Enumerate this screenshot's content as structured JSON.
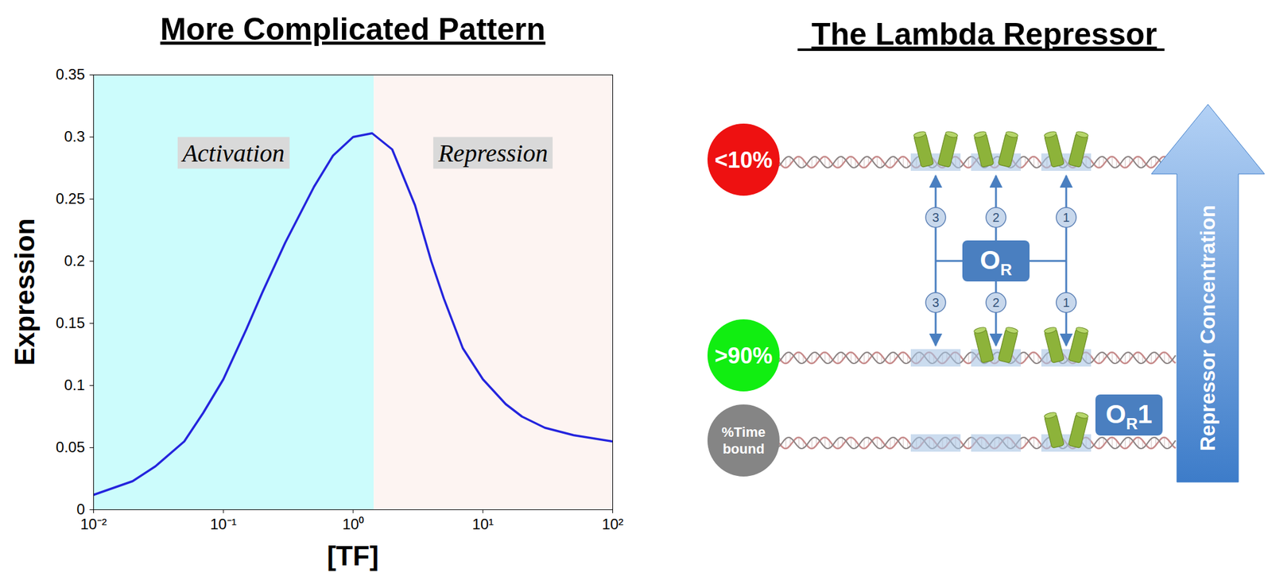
{
  "chart_data": {
    "type": "line",
    "title": "More Complicated Pattern",
    "x_label": "[TF]",
    "y_label": "Expression",
    "log": "x",
    "grid": false,
    "xlim": [
      0.01,
      100
    ],
    "xticks": [
      {
        "value": 0.01,
        "label": "10⁻²"
      },
      {
        "value": 0.1,
        "label": "10⁻¹"
      },
      {
        "value": 1,
        "label": "10⁰"
      },
      {
        "value": 10,
        "label": "10¹"
      },
      {
        "value": 100,
        "label": "10²"
      }
    ],
    "ylim": [
      0,
      0.35
    ],
    "yticks": [
      0,
      0.05,
      0.1,
      0.15,
      0.2,
      0.25,
      0.3,
      0.35
    ],
    "color": "#2424dd",
    "x": [
      0.01,
      0.02,
      0.03,
      0.05,
      0.07,
      0.1,
      0.15,
      0.2,
      0.3,
      0.5,
      0.7,
      1.0,
      1.4,
      2,
      3,
      4,
      5,
      7,
      10,
      15,
      20,
      30,
      50,
      100
    ],
    "values": [
      0.012,
      0.023,
      0.035,
      0.055,
      0.078,
      0.105,
      0.145,
      0.175,
      0.215,
      0.26,
      0.285,
      0.3,
      0.303,
      0.29,
      0.245,
      0.2,
      0.17,
      0.13,
      0.105,
      0.085,
      0.075,
      0.066,
      0.06,
      0.055
    ],
    "regions": [
      {
        "label": "Activation",
        "x1": 0.01,
        "x2": 1.45,
        "color": "#ccfcfc"
      },
      {
        "label": "Repression",
        "x1": 1.45,
        "x2": 100,
        "color": "#fdf4f2"
      }
    ]
  },
  "diagram": {
    "title": "The Lambda Repressor",
    "sites": [
      "3",
      "2",
      "1"
    ],
    "states": [
      {
        "label": "<10%",
        "color": "#ee1111",
        "bound_sites": [
          "3",
          "2",
          "1"
        ]
      },
      {
        "label": ">90%",
        "color": "#11ee11",
        "bound_sites": [
          "2",
          "1"
        ]
      },
      {
        "label": "%Time bound",
        "color": "#858585",
        "bound_sites": [
          "1"
        ]
      }
    ],
    "operator": {
      "label": "O",
      "subscript": "R"
    },
    "site_label": {
      "label": "O",
      "subscript": "R",
      "suffix": "1"
    },
    "arrow_label": "Repressor Concentration"
  }
}
